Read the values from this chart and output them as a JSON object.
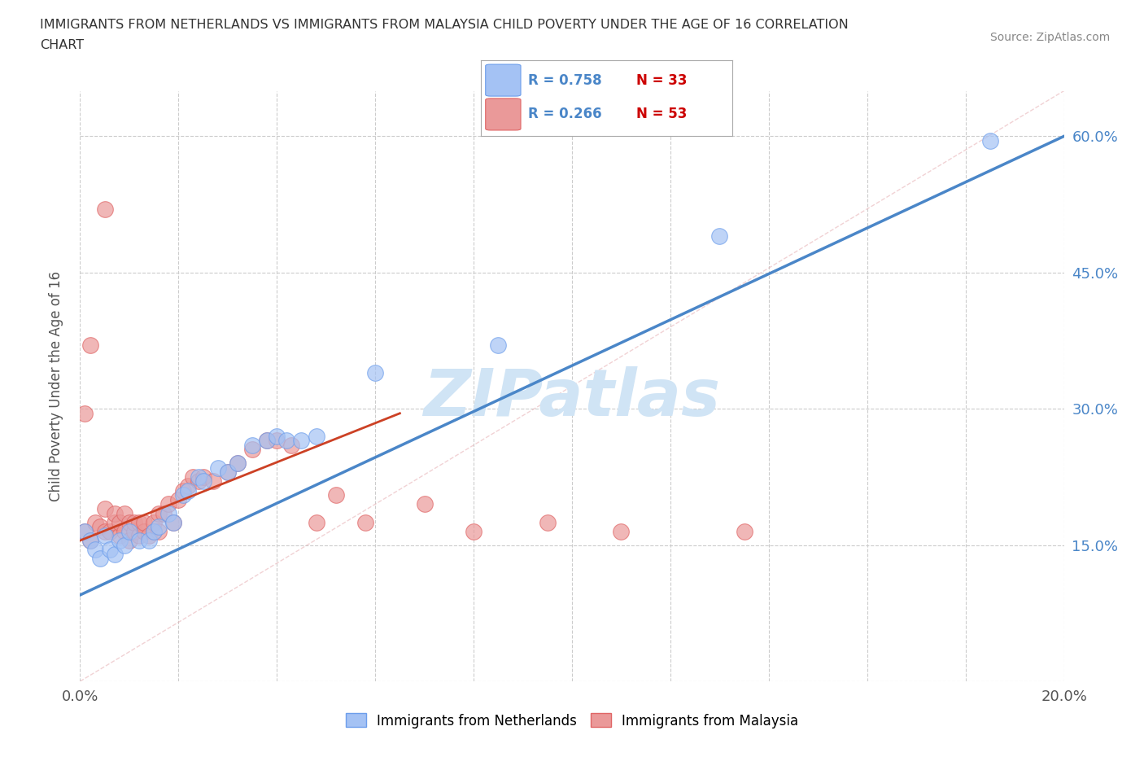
{
  "title_line1": "IMMIGRANTS FROM NETHERLANDS VS IMMIGRANTS FROM MALAYSIA CHILD POVERTY UNDER THE AGE OF 16 CORRELATION",
  "title_line2": "CHART",
  "source_text": "Source: ZipAtlas.com",
  "ylabel": "Child Poverty Under the Age of 16",
  "xlim": [
    0.0,
    0.2
  ],
  "ylim": [
    0.0,
    0.65
  ],
  "x_ticks": [
    0.0,
    0.02,
    0.04,
    0.06,
    0.08,
    0.1,
    0.12,
    0.14,
    0.16,
    0.18,
    0.2
  ],
  "y_ticks": [
    0.0,
    0.15,
    0.3,
    0.45,
    0.6
  ],
  "netherlands_color": "#a4c2f4",
  "netherlands_edge_color": "#6d9eeb",
  "netherlands_line_color": "#4a86c8",
  "malaysia_color": "#ea9999",
  "malaysia_edge_color": "#e06666",
  "malaysia_line_color": "#cc4125",
  "ref_line_color": "#cccccc",
  "watermark_color": "#d0e4f5",
  "R_netherlands": 0.758,
  "N_netherlands": 33,
  "R_malaysia": 0.266,
  "N_malaysia": 53,
  "nl_line_x0": 0.0,
  "nl_line_y0": 0.095,
  "nl_line_x1": 0.2,
  "nl_line_y1": 0.6,
  "my_line_x0": 0.0,
  "my_line_y0": 0.155,
  "my_line_x1": 0.065,
  "my_line_y1": 0.295,
  "nl_scatter_x": [
    0.001,
    0.002,
    0.003,
    0.004,
    0.005,
    0.006,
    0.007,
    0.008,
    0.009,
    0.01,
    0.012,
    0.014,
    0.015,
    0.016,
    0.018,
    0.019,
    0.021,
    0.022,
    0.024,
    0.025,
    0.028,
    0.03,
    0.032,
    0.035,
    0.038,
    0.04,
    0.042,
    0.045,
    0.048,
    0.06,
    0.085,
    0.13,
    0.185
  ],
  "nl_scatter_y": [
    0.165,
    0.155,
    0.145,
    0.135,
    0.16,
    0.145,
    0.14,
    0.155,
    0.15,
    0.165,
    0.155,
    0.155,
    0.165,
    0.17,
    0.185,
    0.175,
    0.205,
    0.21,
    0.225,
    0.22,
    0.235,
    0.23,
    0.24,
    0.26,
    0.265,
    0.27,
    0.265,
    0.265,
    0.27,
    0.34,
    0.37,
    0.49,
    0.595
  ],
  "my_scatter_x": [
    0.001,
    0.002,
    0.003,
    0.004,
    0.005,
    0.005,
    0.006,
    0.007,
    0.007,
    0.008,
    0.008,
    0.009,
    0.009,
    0.01,
    0.01,
    0.011,
    0.011,
    0.012,
    0.012,
    0.013,
    0.013,
    0.014,
    0.015,
    0.015,
    0.016,
    0.016,
    0.017,
    0.018,
    0.019,
    0.02,
    0.021,
    0.022,
    0.023,
    0.024,
    0.025,
    0.027,
    0.03,
    0.032,
    0.035,
    0.038,
    0.04,
    0.043,
    0.048,
    0.052,
    0.058,
    0.07,
    0.08,
    0.095,
    0.11,
    0.135,
    0.005,
    0.002,
    0.001
  ],
  "my_scatter_y": [
    0.165,
    0.155,
    0.175,
    0.17,
    0.165,
    0.19,
    0.165,
    0.175,
    0.185,
    0.16,
    0.175,
    0.165,
    0.185,
    0.155,
    0.175,
    0.165,
    0.175,
    0.16,
    0.175,
    0.165,
    0.175,
    0.16,
    0.165,
    0.175,
    0.165,
    0.185,
    0.185,
    0.195,
    0.175,
    0.2,
    0.21,
    0.215,
    0.225,
    0.22,
    0.225,
    0.22,
    0.23,
    0.24,
    0.255,
    0.265,
    0.265,
    0.26,
    0.175,
    0.205,
    0.175,
    0.195,
    0.165,
    0.175,
    0.165,
    0.165,
    0.52,
    0.37,
    0.295
  ]
}
